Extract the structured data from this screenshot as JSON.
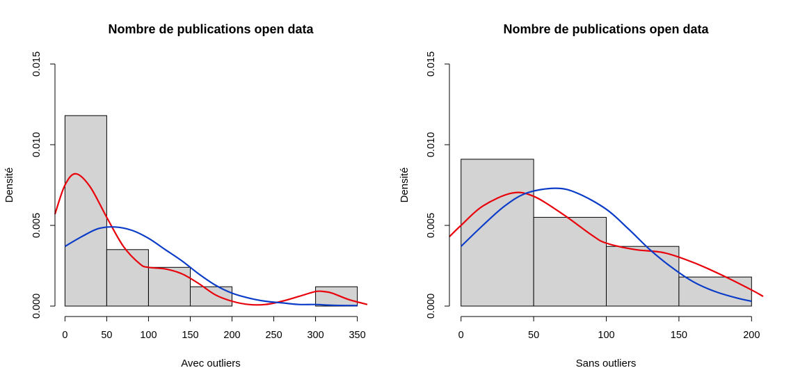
{
  "colors": {
    "bar_fill": "#d3d3d3",
    "bar_stroke": "#000000",
    "red_curve": "#e8000b",
    "blue_curve": "#0a3cc8"
  },
  "chart_data": [
    {
      "type": "bar",
      "title": "Nombre de publications open data",
      "xlabel": "Avec outliers",
      "ylabel": "Densité",
      "xlim": [
        -12,
        362
      ],
      "ylim": [
        0,
        0.015
      ],
      "xticks": [
        0,
        50,
        100,
        150,
        200,
        250,
        300,
        350
      ],
      "xtick_labels": [
        "0",
        "50",
        "100",
        "150",
        "200",
        "250",
        "300",
        "350"
      ],
      "yticks": [
        0,
        0.005,
        0.01,
        0.015
      ],
      "ytick_labels": [
        "0.000",
        "0.005",
        "0.010",
        "0.015"
      ],
      "bins": [
        [
          0,
          50
        ],
        [
          50,
          100
        ],
        [
          100,
          150
        ],
        [
          150,
          200
        ],
        [
          200,
          250
        ],
        [
          250,
          300
        ],
        [
          300,
          350
        ]
      ],
      "values": [
        0.0118,
        0.0035,
        0.0024,
        0.0012,
        0,
        0,
        0.0012
      ],
      "series": [
        {
          "type": "line",
          "color": "red",
          "x": [
            -12,
            0,
            13,
            30,
            50,
            70,
            90,
            100,
            120,
            140,
            160,
            180,
            200,
            220,
            240,
            260,
            280,
            300,
            310,
            320,
            340,
            362
          ],
          "y": [
            0.0057,
            0.0075,
            0.0082,
            0.0074,
            0.0055,
            0.0037,
            0.0026,
            0.0024,
            0.0023,
            0.002,
            0.0014,
            0.0007,
            0.0003,
            0.0001,
            0.0001,
            0.0003,
            0.0006,
            0.0009,
            0.0009,
            0.0008,
            0.0004,
            0.0001
          ]
        },
        {
          "type": "line",
          "color": "blue",
          "x": [
            0,
            20,
            40,
            60,
            80,
            100,
            120,
            140,
            160,
            180,
            200,
            220,
            240,
            260,
            280,
            300,
            320,
            350
          ],
          "y": [
            0.0037,
            0.0043,
            0.0048,
            0.0049,
            0.0047,
            0.0042,
            0.0035,
            0.0028,
            0.002,
            0.0013,
            0.0008,
            0.0005,
            0.0003,
            0.0002,
            0.0001,
            0.0001,
            5e-05,
            3e-05
          ]
        }
      ]
    },
    {
      "type": "bar",
      "title": "Nombre de publications open data",
      "xlabel": "Sans outliers",
      "ylabel": "Densité",
      "xlim": [
        -8,
        208
      ],
      "ylim": [
        0,
        0.015
      ],
      "xticks": [
        0,
        50,
        100,
        150,
        200
      ],
      "xtick_labels": [
        "0",
        "50",
        "100",
        "150",
        "200"
      ],
      "yticks": [
        0,
        0.005,
        0.01,
        0.015
      ],
      "ytick_labels": [
        "0.000",
        "0.005",
        "0.010",
        "0.015"
      ],
      "bins": [
        [
          0,
          50
        ],
        [
          50,
          100
        ],
        [
          100,
          150
        ],
        [
          150,
          200
        ]
      ],
      "values": [
        0.0091,
        0.0055,
        0.0037,
        0.0018
      ],
      "series": [
        {
          "type": "line",
          "color": "red",
          "x": [
            -8,
            0,
            15,
            35,
            50,
            70,
            90,
            100,
            120,
            140,
            160,
            180,
            200,
            208
          ],
          "y": [
            0.0043,
            0.005,
            0.0062,
            0.007,
            0.0068,
            0.0057,
            0.0044,
            0.0039,
            0.0035,
            0.0033,
            0.0027,
            0.0019,
            0.001,
            0.0006
          ]
        },
        {
          "type": "line",
          "color": "blue",
          "x": [
            0,
            15,
            30,
            45,
            65,
            80,
            100,
            115,
            130,
            145,
            160,
            175,
            190,
            200
          ],
          "y": [
            0.0037,
            0.005,
            0.0062,
            0.007,
            0.0073,
            0.007,
            0.006,
            0.0048,
            0.0035,
            0.0024,
            0.0015,
            0.0009,
            0.0005,
            0.0003
          ]
        }
      ]
    }
  ]
}
